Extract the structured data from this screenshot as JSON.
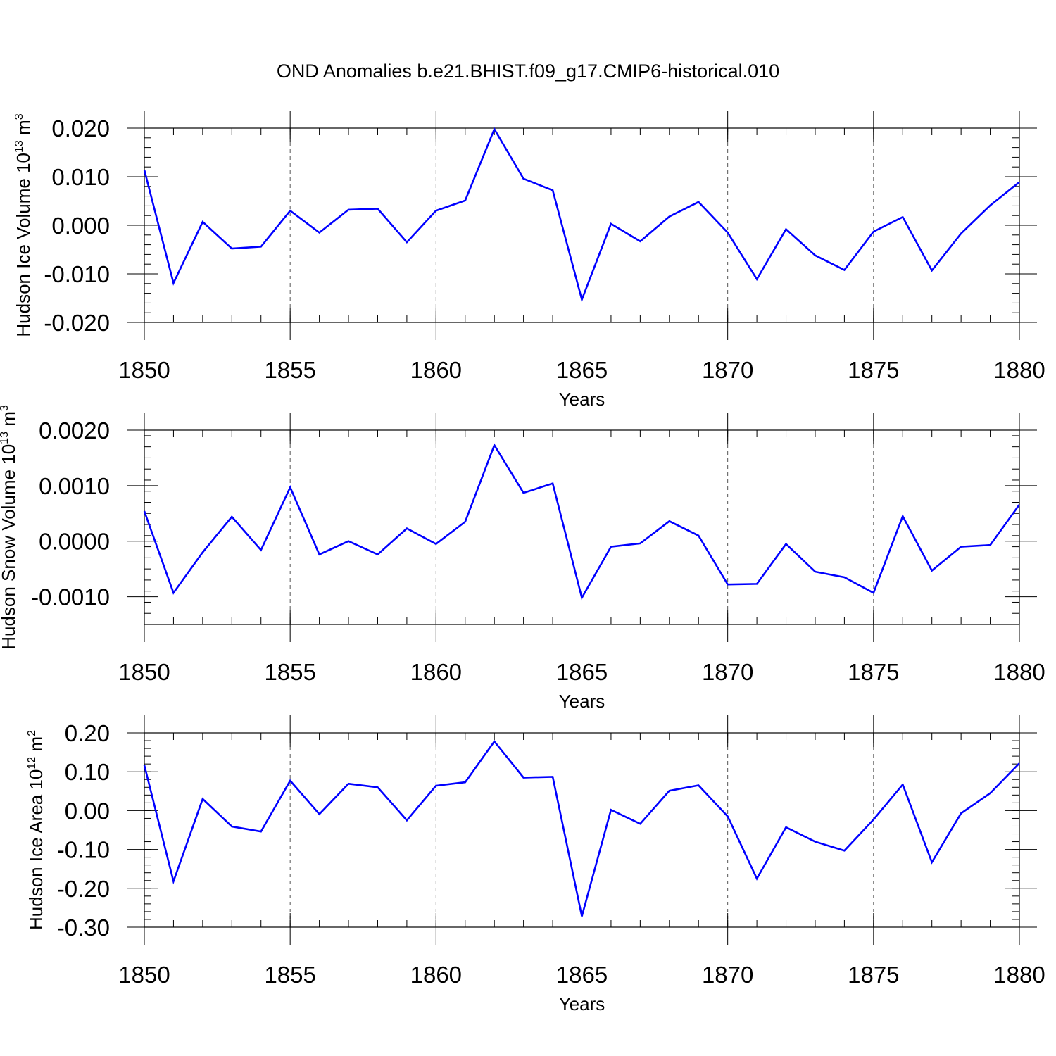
{
  "figure": {
    "title": "OND Anomalies b.e21.BHIST.f09_g17.CMIP6-historical.010",
    "line_color": "#0000ff"
  },
  "chart_data": [
    {
      "type": "line",
      "name": "ice-volume",
      "title": "OND Anomalies b.e21.BHIST.f09_g17.CMIP6-historical.010",
      "xlabel": "Years",
      "ylabel": "Hudson Ice Volume 10",
      "ylabel_sup": "13",
      "ylabel_unit": " m",
      "ylabel_unit_sup": "3",
      "xlim": [
        1850,
        1880
      ],
      "ylim": [
        -0.02,
        0.02
      ],
      "x_ticks": [
        1850,
        1855,
        1860,
        1865,
        1870,
        1875,
        1880
      ],
      "x_tick_labels": [
        "1850",
        "1855",
        "1860",
        "1865",
        "1870",
        "1875",
        "1880"
      ],
      "y_ticks": [
        -0.02,
        -0.01,
        0.0,
        0.01,
        0.02
      ],
      "y_tick_labels": [
        "-0.020",
        "-0.010",
        "0.000",
        "0.010",
        "0.020"
      ],
      "grid": "dashed vertical at major x ticks",
      "x": [
        1850,
        1851,
        1852,
        1853,
        1854,
        1855,
        1856,
        1857,
        1858,
        1859,
        1860,
        1861,
        1862,
        1863,
        1864,
        1865,
        1866,
        1867,
        1868,
        1869,
        1870,
        1871,
        1872,
        1873,
        1874,
        1875,
        1876,
        1877,
        1878,
        1879,
        1880
      ],
      "values": [
        0.0114,
        -0.0119,
        0.0007,
        -0.0048,
        -0.0044,
        0.003,
        -0.0015,
        0.0032,
        0.0034,
        -0.0035,
        0.003,
        0.0051,
        0.0198,
        0.0096,
        0.0072,
        -0.0153,
        0.0003,
        -0.0033,
        0.0018,
        0.0048,
        -0.0015,
        -0.0111,
        -0.0008,
        -0.0062,
        -0.0092,
        -0.0013,
        0.0017,
        -0.0093,
        -0.0017,
        0.0041,
        0.0089
      ]
    },
    {
      "type": "line",
      "name": "snow-volume",
      "xlabel": "Years",
      "ylabel": "Hudson Snow Volume 10",
      "ylabel_sup": "13",
      "ylabel_unit": " m",
      "ylabel_unit_sup": "3",
      "xlim": [
        1850,
        1880
      ],
      "ylim": [
        -0.0015,
        0.002
      ],
      "x_ticks": [
        1850,
        1855,
        1860,
        1865,
        1870,
        1875,
        1880
      ],
      "x_tick_labels": [
        "1850",
        "1855",
        "1860",
        "1865",
        "1870",
        "1875",
        "1880"
      ],
      "y_ticks": [
        -0.001,
        0.0,
        0.001,
        0.002
      ],
      "y_tick_labels": [
        "-0.0010",
        "0.0000",
        "0.0010",
        "0.0020"
      ],
      "grid": "dashed vertical at major x ticks",
      "x": [
        1850,
        1851,
        1852,
        1853,
        1854,
        1855,
        1856,
        1857,
        1858,
        1859,
        1860,
        1861,
        1862,
        1863,
        1864,
        1865,
        1866,
        1867,
        1868,
        1869,
        1870,
        1871,
        1872,
        1873,
        1874,
        1875,
        1876,
        1877,
        1878,
        1879,
        1880
      ],
      "values": [
        0.00054,
        -0.00093,
        -0.0002,
        0.00044,
        -0.00016,
        0.00097,
        -0.00024,
        0.0,
        -0.00024,
        0.00023,
        -5e-05,
        0.00035,
        0.00173,
        0.00087,
        0.00104,
        -0.00102,
        -0.0001,
        -4e-05,
        0.00036,
        0.0001,
        -0.00078,
        -0.00077,
        -5e-05,
        -0.00055,
        -0.00065,
        -0.00093,
        0.00045,
        -0.00053,
        -0.0001,
        -7e-05,
        0.00066
      ]
    },
    {
      "type": "line",
      "name": "ice-area",
      "xlabel": "Years",
      "ylabel": "Hudson Ice Area 10",
      "ylabel_sup": "12",
      "ylabel_unit": " m",
      "ylabel_unit_sup": "2",
      "xlim": [
        1850,
        1880
      ],
      "ylim": [
        -0.3,
        0.2
      ],
      "x_ticks": [
        1850,
        1855,
        1860,
        1865,
        1870,
        1875,
        1880
      ],
      "x_tick_labels": [
        "1850",
        "1855",
        "1860",
        "1865",
        "1870",
        "1875",
        "1880"
      ],
      "y_ticks": [
        -0.3,
        -0.2,
        -0.1,
        0.0,
        0.1,
        0.2
      ],
      "y_tick_labels": [
        "-0.30",
        "-0.20",
        "-0.10",
        "0.00",
        "0.10",
        "0.20"
      ],
      "grid": "dashed vertical at major x ticks",
      "x": [
        1850,
        1851,
        1852,
        1853,
        1854,
        1855,
        1856,
        1857,
        1858,
        1859,
        1860,
        1861,
        1862,
        1863,
        1864,
        1865,
        1866,
        1867,
        1868,
        1869,
        1870,
        1871,
        1872,
        1873,
        1874,
        1875,
        1876,
        1877,
        1878,
        1879,
        1880
      ],
      "values": [
        0.117,
        -0.182,
        0.03,
        -0.041,
        -0.054,
        0.077,
        -0.009,
        0.069,
        0.06,
        -0.025,
        0.064,
        0.073,
        0.178,
        0.085,
        0.087,
        -0.272,
        0.002,
        -0.034,
        0.051,
        0.065,
        -0.015,
        -0.175,
        -0.043,
        -0.08,
        -0.103,
        -0.023,
        0.067,
        -0.133,
        -0.007,
        0.045,
        0.122
      ]
    }
  ]
}
